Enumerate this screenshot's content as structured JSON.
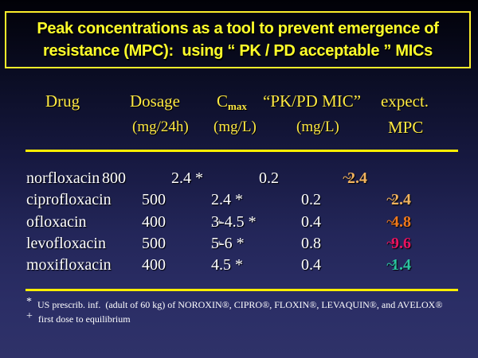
{
  "title": {
    "line1": "Peak concentrations as a tool to prevent emergence of",
    "line2": "resistance (MPC):  using “ PK / PD acceptable ” MICs"
  },
  "table": {
    "headers": {
      "drug": "Drug",
      "dosage": "Dosage",
      "cmax_base": "C",
      "cmax_sub": "max",
      "mic": "“PK/PD MIC”",
      "expect": "expect.",
      "dosage_unit": "(mg/24h)",
      "cmax_unit": "(mg/L)",
      "mic_unit": "(mg/L)",
      "expect_unit": "MPC"
    },
    "mpc_prefix": "~",
    "rows": [
      {
        "drug": "norfloxacin",
        "dosage": "800",
        "cmax": "2.4 *",
        "cmax_sup": "",
        "mic": "0.2",
        "mpc": "2.4",
        "mpc_color": "#f2b35e"
      },
      {
        "drug": "ciprofloxacin",
        "dosage": "500",
        "cmax": "2.4 *",
        "cmax_sup": "",
        "mic": "0.2",
        "mpc": "2.4",
        "mpc_color": "#f2b35e"
      },
      {
        "drug": "ofloxacin",
        "dosage": "400",
        "cmax": "3-4.5 *",
        "cmax_sup": ", +",
        "mic": "0.4",
        "mpc": "4.8",
        "mpc_color": "#f0791c"
      },
      {
        "drug": "levofloxacin",
        "dosage": "500",
        "cmax": "5-6 *",
        "cmax_sup": ", +",
        "mic": "0.8",
        "mpc": "9.6",
        "mpc_color": "#e9135f"
      },
      {
        "drug": "moxifloxacin",
        "dosage": "400",
        "cmax": "4.5 *",
        "cmax_sup": "",
        "mic": "0.4",
        "mpc": "1.4",
        "mpc_color": "#2bc6a2"
      }
    ]
  },
  "footnotes": [
    {
      "marker": "*",
      "text": "US prescrib. inf.  (adult of 60 kg) of NOROXIN®, CIPRO®, FLOXIN®, LEVAQUIN®, and AVELOX®"
    },
    {
      "marker": "+",
      "text": "first dose to equilibrium"
    }
  ],
  "colors": {
    "background_top": "#010107",
    "background_bottom": "#2f3269",
    "title_yellow": "#ffff2a",
    "header_yellow": "#fde843",
    "divider_yellow": "#ffee00",
    "body_white": "#ffffff",
    "mpc_tan": "#f2b35e",
    "mpc_orange": "#f0791c",
    "mpc_crimson": "#e9135f",
    "mpc_teal": "#2bc6a2"
  }
}
